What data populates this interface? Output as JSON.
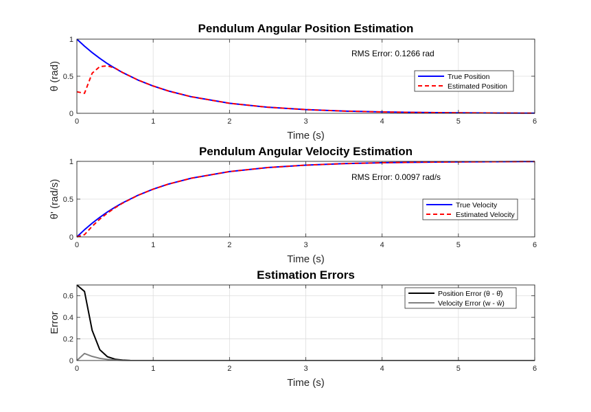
{
  "chart_data": [
    {
      "type": "line",
      "title": "Pendulum Angular Position Estimation",
      "xlabel": "Time (s)",
      "ylabel": "θ (rad)",
      "xlim": [
        0,
        6
      ],
      "ylim": [
        0,
        1
      ],
      "xticks": [
        "0",
        "1",
        "2",
        "3",
        "4",
        "5",
        "6"
      ],
      "yticks": [
        "0",
        "0.5",
        "1"
      ],
      "grid": true,
      "legend_placement": "right",
      "annotation": "RMS Error: 0.1266 rad",
      "series": [
        {
          "name": "True Position",
          "color": "#0000ff",
          "style": "solid",
          "x": [
            0,
            0.1,
            0.2,
            0.3,
            0.4,
            0.5,
            0.6,
            0.8,
            1.0,
            1.2,
            1.5,
            2.0,
            2.5,
            3.0,
            3.5,
            4.0,
            4.5,
            5.0,
            5.5,
            6.0
          ],
          "y": [
            1.0,
            0.905,
            0.819,
            0.741,
            0.67,
            0.607,
            0.549,
            0.449,
            0.368,
            0.301,
            0.223,
            0.135,
            0.082,
            0.05,
            0.03,
            0.018,
            0.011,
            0.007,
            0.004,
            0.002
          ]
        },
        {
          "name": "Estimated Position",
          "color": "#ff0000",
          "style": "dashed",
          "x": [
            0,
            0.1,
            0.2,
            0.3,
            0.4,
            0.5,
            0.6,
            0.8,
            1.0,
            1.2,
            1.5,
            2.0,
            2.5,
            3.0,
            3.5,
            4.0,
            4.5,
            5.0,
            5.5,
            6.0
          ],
          "y": [
            0.29,
            0.27,
            0.54,
            0.63,
            0.64,
            0.61,
            0.55,
            0.449,
            0.368,
            0.301,
            0.223,
            0.135,
            0.082,
            0.05,
            0.03,
            0.018,
            0.011,
            0.007,
            0.004,
            0.002
          ]
        }
      ]
    },
    {
      "type": "line",
      "title": "Pendulum Angular Velocity Estimation",
      "xlabel": "Time (s)",
      "ylabel": "θ' (rad/s)",
      "xlim": [
        0,
        6
      ],
      "ylim": [
        0,
        1
      ],
      "xticks": [
        "0",
        "1",
        "2",
        "3",
        "4",
        "5",
        "6"
      ],
      "yticks": [
        "0",
        "0.5",
        "1"
      ],
      "grid": true,
      "legend_placement": "right",
      "annotation": "RMS Error: 0.0097 rad/s",
      "series": [
        {
          "name": "True Velocity",
          "color": "#0000ff",
          "style": "solid",
          "x": [
            0,
            0.1,
            0.2,
            0.3,
            0.4,
            0.5,
            0.6,
            0.8,
            1.0,
            1.2,
            1.5,
            2.0,
            2.5,
            3.0,
            3.5,
            4.0,
            4.5,
            5.0,
            5.5,
            6.0
          ],
          "y": [
            0.0,
            0.095,
            0.181,
            0.259,
            0.33,
            0.393,
            0.451,
            0.551,
            0.632,
            0.699,
            0.777,
            0.865,
            0.918,
            0.95,
            0.97,
            0.982,
            0.989,
            0.993,
            0.996,
            0.998
          ]
        },
        {
          "name": "Estimated Velocity",
          "color": "#ff0000",
          "style": "dashed",
          "x": [
            0,
            0.1,
            0.2,
            0.3,
            0.4,
            0.5,
            0.6,
            0.8,
            1.0,
            1.2,
            1.5,
            2.0,
            2.5,
            3.0,
            3.5,
            4.0,
            4.5,
            5.0,
            5.5,
            6.0
          ],
          "y": [
            0.0,
            0.03,
            0.14,
            0.235,
            0.315,
            0.385,
            0.447,
            0.55,
            0.632,
            0.699,
            0.777,
            0.865,
            0.918,
            0.95,
            0.97,
            0.982,
            0.989,
            0.993,
            0.996,
            0.998
          ]
        }
      ]
    },
    {
      "type": "line",
      "title": "Estimation Errors",
      "xlabel": "Time (s)",
      "ylabel": "Error",
      "xlim": [
        0,
        6
      ],
      "ylim": [
        0,
        0.7
      ],
      "xticks": [
        "0",
        "1",
        "2",
        "3",
        "4",
        "5",
        "6"
      ],
      "yticks": [
        "0",
        "0.2",
        "0.4",
        "0.6"
      ],
      "grid": true,
      "legend_placement": "top-right",
      "annotation": "",
      "series": [
        {
          "name": "Position Error (θ - θ̂)",
          "color": "#000000",
          "style": "solid",
          "x": [
            0,
            0.1,
            0.2,
            0.3,
            0.4,
            0.5,
            0.6,
            0.7,
            0.8,
            1.0,
            2.0,
            3.0,
            4.0,
            5.0,
            6.0
          ],
          "y": [
            0.7,
            0.64,
            0.28,
            0.1,
            0.035,
            0.012,
            0.004,
            0.001,
            0.0,
            0.0,
            0.0,
            0.0,
            0.0,
            0.0,
            0.0
          ]
        },
        {
          "name": "Velocity Error (w - ŵ)",
          "color": "#808080",
          "style": "solid",
          "x": [
            0,
            0.1,
            0.2,
            0.3,
            0.4,
            0.5,
            0.6,
            0.7,
            0.8,
            1.0,
            2.0,
            3.0,
            4.0,
            5.0,
            6.0
          ],
          "y": [
            0.0,
            0.065,
            0.038,
            0.02,
            0.01,
            0.004,
            0.001,
            0.0,
            0.0,
            0.0,
            0.0,
            0.0,
            0.0,
            0.0,
            0.0
          ]
        }
      ]
    }
  ]
}
